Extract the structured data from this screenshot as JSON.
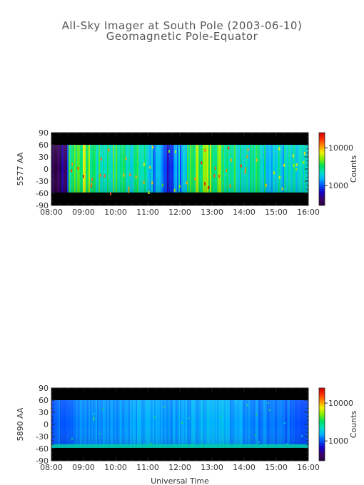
{
  "header": {
    "title": "All-Sky Imager at South Pole (2003-06-10)",
    "subtitle": "Geomagnetic Pole-Equator"
  },
  "colorbar_colors": [
    "#2a003a",
    "#3a0070",
    "#1400c8",
    "#0050ff",
    "#00b4ff",
    "#00e0c0",
    "#00e060",
    "#80f000",
    "#f0f000",
    "#ff9000",
    "#ff3000",
    "#d00000"
  ],
  "chart_data": [
    {
      "type": "heatmap",
      "panel": "top",
      "title": "",
      "xlabel": "",
      "ylabel": "5577 AA",
      "x_ticks": [
        "08:00",
        "09:00",
        "10:00",
        "11:00",
        "12:00",
        "13:00",
        "14:00",
        "15:00",
        "16:00"
      ],
      "y_ticks": [
        90,
        60,
        30,
        0,
        -30,
        -60,
        -90
      ],
      "xlim": [
        "08:00",
        "16:00"
      ],
      "ylim": [
        -90,
        90
      ],
      "data_ylim": [
        -58,
        60
      ],
      "colorbar": {
        "label": "Counts",
        "scale": "log",
        "ticks": [
          1000,
          10000
        ],
        "tick_labels": [
          "1000",
          "10000"
        ]
      },
      "intensity_profile": [
        {
          "t": 8.0,
          "v": 0.05
        },
        {
          "t": 8.5,
          "v": 0.1
        },
        {
          "t": 8.55,
          "v": 0.55
        },
        {
          "t": 9.0,
          "v": 0.62
        },
        {
          "t": 9.5,
          "v": 0.48
        },
        {
          "t": 10.0,
          "v": 0.52
        },
        {
          "t": 10.5,
          "v": 0.5
        },
        {
          "t": 11.0,
          "v": 0.45
        },
        {
          "t": 11.5,
          "v": 0.22
        },
        {
          "t": 12.0,
          "v": 0.35
        },
        {
          "t": 12.5,
          "v": 0.6
        },
        {
          "t": 13.0,
          "v": 0.62
        },
        {
          "t": 13.5,
          "v": 0.55
        },
        {
          "t": 14.0,
          "v": 0.5
        },
        {
          "t": 14.5,
          "v": 0.48
        },
        {
          "t": 15.0,
          "v": 0.42
        },
        {
          "t": 15.5,
          "v": 0.4
        },
        {
          "t": 16.0,
          "v": 0.38
        }
      ]
    },
    {
      "type": "heatmap",
      "panel": "bottom",
      "title": "",
      "xlabel": "Universal Time",
      "ylabel": "5890 AA",
      "x_ticks": [
        "08:00",
        "09:00",
        "10:00",
        "11:00",
        "12:00",
        "13:00",
        "14:00",
        "15:00",
        "16:00"
      ],
      "y_ticks": [
        90,
        60,
        30,
        0,
        -30,
        -60,
        -90
      ],
      "xlim": [
        "08:00",
        "16:00"
      ],
      "ylim": [
        -90,
        90
      ],
      "data_ylim": [
        -58,
        60
      ],
      "colorbar": {
        "label": "Counts",
        "scale": "log",
        "ticks": [
          1000,
          10000
        ],
        "tick_labels": [
          "1000",
          "10000"
        ]
      },
      "intensity_profile": [
        {
          "t": 8.0,
          "v": 0.28
        },
        {
          "t": 9.0,
          "v": 0.32
        },
        {
          "t": 10.0,
          "v": 0.34
        },
        {
          "t": 11.0,
          "v": 0.35
        },
        {
          "t": 12.0,
          "v": 0.34
        },
        {
          "t": 13.0,
          "v": 0.38
        },
        {
          "t": 14.0,
          "v": 0.33
        },
        {
          "t": 15.0,
          "v": 0.3
        },
        {
          "t": 16.0,
          "v": 0.28
        }
      ]
    }
  ]
}
